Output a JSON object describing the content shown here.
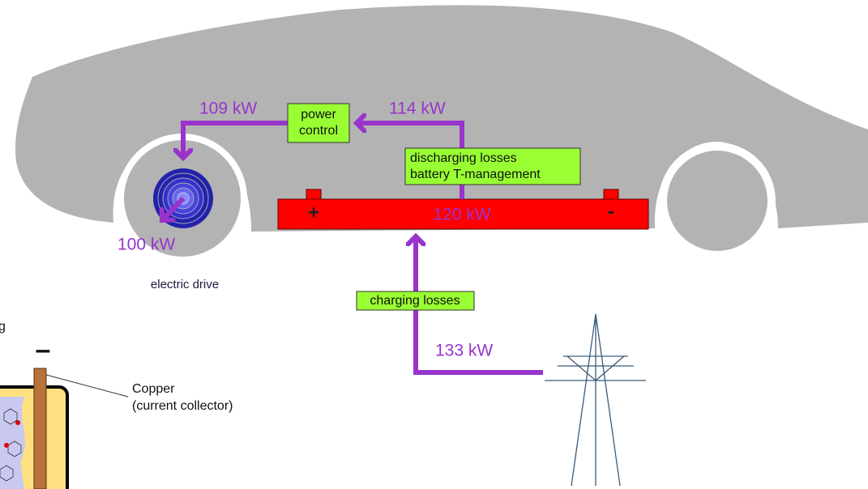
{
  "power_flow": {
    "drive_input": "109 kW",
    "controller_input": "114 kW",
    "battery": "120 kW",
    "drive_output": "100 kW",
    "grid_input": "133 kW"
  },
  "boxes": {
    "power_control": [
      "power",
      "control"
    ],
    "discharging_losses": [
      "discharging losses",
      "battery T-management"
    ],
    "charging_losses": "charging losses"
  },
  "battery_terminals": {
    "positive": "+",
    "negative": "-"
  },
  "caption": "electric drive",
  "inset": {
    "cut_text": "g",
    "terminal": "–",
    "callout": [
      "Copper",
      "(current collector)"
    ]
  }
}
